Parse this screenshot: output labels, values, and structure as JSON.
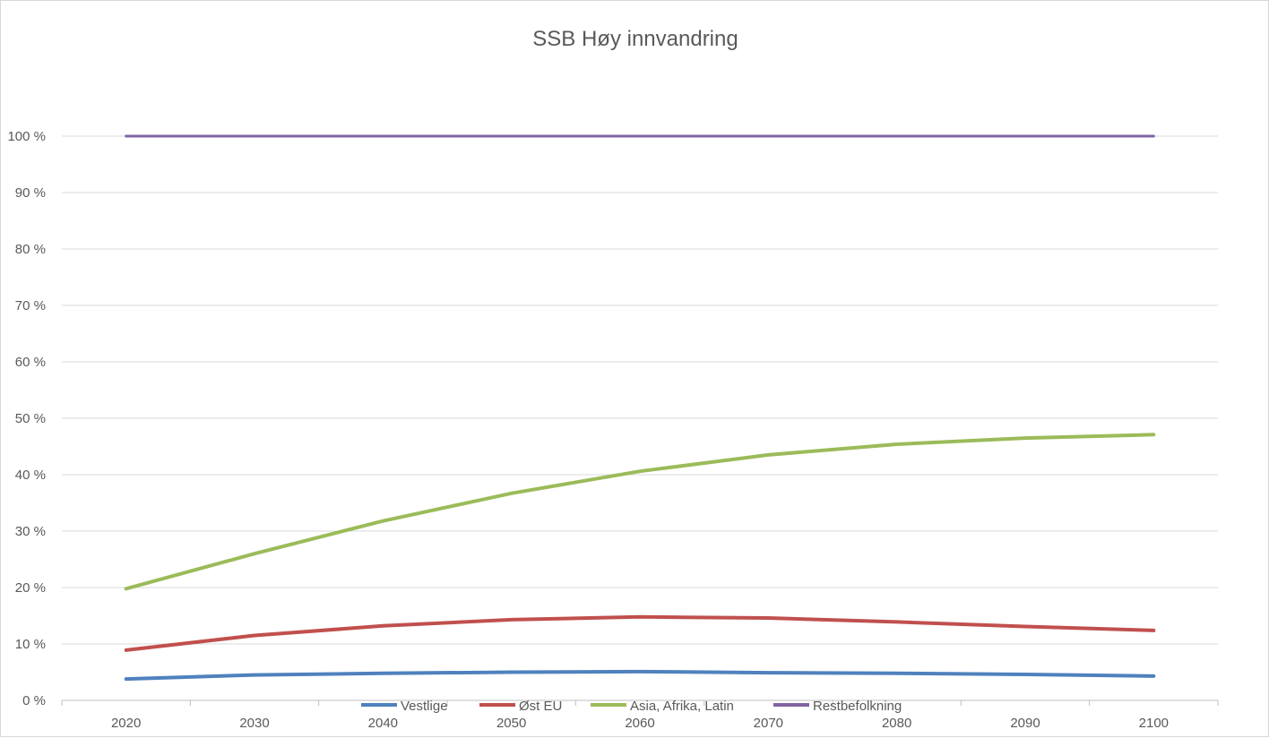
{
  "chart_data": {
    "type": "line",
    "title": "SSB Høy innvandring",
    "xlabel": "",
    "ylabel": "",
    "x": [
      "2020",
      "2030",
      "2040",
      "2050",
      "2060",
      "2070",
      "2080",
      "2090",
      "2100"
    ],
    "ylim": [
      0,
      100
    ],
    "y_ticks": [
      "0 %",
      "10 %",
      "20 %",
      "30 %",
      "40 %",
      "50 %",
      "60 %",
      "70 %",
      "80 %",
      "90 %",
      "100 %"
    ],
    "grid": true,
    "legend_position": "bottom",
    "series": [
      {
        "name": "Vestlige",
        "color": "#4f81bd",
        "values": [
          3.8,
          4.5,
          4.8,
          5.0,
          5.1,
          4.9,
          4.8,
          4.6,
          4.3
        ]
      },
      {
        "name": "Øst EU",
        "color": "#c0504d",
        "values": [
          8.9,
          11.5,
          13.2,
          14.3,
          14.8,
          14.6,
          13.9,
          13.1,
          12.4
        ]
      },
      {
        "name": "Asia, Afrika, Latin",
        "color": "#9bbb59",
        "values": [
          19.8,
          26.0,
          31.8,
          36.7,
          40.6,
          43.5,
          45.4,
          46.5,
          47.1
        ]
      },
      {
        "name": "Restbefolkning",
        "color": "#8064a2",
        "values": [
          100,
          100,
          100,
          100,
          100,
          100,
          100,
          100,
          100
        ]
      }
    ]
  }
}
